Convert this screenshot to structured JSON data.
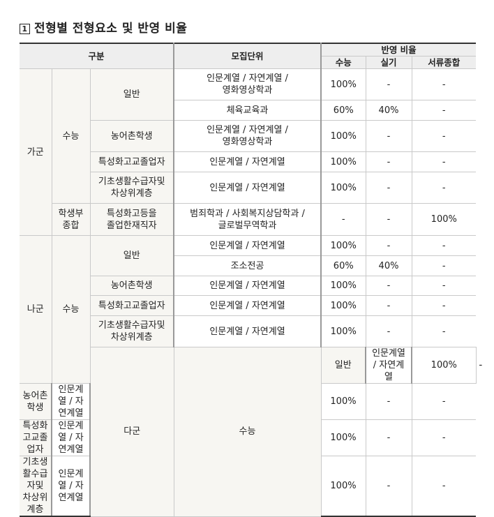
{
  "title": {
    "number": "1",
    "text": "전형별 전형요소 및 반영 비율"
  },
  "header": {
    "division": "구분",
    "unit": "모집단위",
    "ratio": "반영 비율",
    "suneung": "수능",
    "practical": "실기",
    "documents": "서류종합"
  },
  "groups": {
    "ga": "가군",
    "na": "나군",
    "da": "다군"
  },
  "types": {
    "suneung": "수능",
    "hakjong": "학생부\n종합"
  },
  "rows": [
    {
      "sub": "일반",
      "unit": "인문계열 / 자연계열 /\n영화영상학과",
      "s": "100%",
      "p": "-",
      "d": "-"
    },
    {
      "sub": "",
      "unit": "체육교육과",
      "s": "60%",
      "p": "40%",
      "d": "-"
    },
    {
      "sub": "농어촌학생",
      "unit": "인문계열 / 자연계열 /\n영화영상학과",
      "s": "100%",
      "p": "-",
      "d": "-"
    },
    {
      "sub": "특성화고교졸업자",
      "unit": "인문계열 / 자연계열",
      "s": "100%",
      "p": "-",
      "d": "-"
    },
    {
      "sub": "기초생활수급자및\n차상위계층",
      "unit": "인문계열 / 자연계열",
      "s": "100%",
      "p": "-",
      "d": "-"
    },
    {
      "sub": "특성화고등을\n졸업한재직자",
      "unit": "범죄학과 / 사회복지상담학과 /\n글로벌무역학과",
      "s": "-",
      "p": "-",
      "d": "100%"
    },
    {
      "sub": "일반",
      "unit": "인문계열 / 자연계열",
      "s": "100%",
      "p": "-",
      "d": "-"
    },
    {
      "sub": "",
      "unit": "조소전공",
      "s": "60%",
      "p": "40%",
      "d": "-"
    },
    {
      "sub": "농어촌학생",
      "unit": "인문계열 / 자연계열",
      "s": "100%",
      "p": "-",
      "d": "-"
    },
    {
      "sub": "특성화고교졸업자",
      "unit": "인문계열 / 자연계열",
      "s": "100%",
      "p": "-",
      "d": "-"
    },
    {
      "sub": "기초생활수급자및\n차상위계층",
      "unit": "인문계열 / 자연계열",
      "s": "100%",
      "p": "-",
      "d": "-"
    },
    {
      "sub": "일반",
      "unit": "인문계열 / 자연계열",
      "s": "100%",
      "p": "-",
      "d": "-"
    },
    {
      "sub": "농어촌학생",
      "unit": "인문계열 / 자연계열",
      "s": "100%",
      "p": "-",
      "d": "-"
    },
    {
      "sub": "특성화고교졸업자",
      "unit": "인문계열 / 자연계열",
      "s": "100%",
      "p": "-",
      "d": "-"
    },
    {
      "sub": "기초생활수급자및\n차상위계층",
      "unit": "인문계열 / 자연계열",
      "s": "100%",
      "p": "-",
      "d": "-"
    }
  ]
}
